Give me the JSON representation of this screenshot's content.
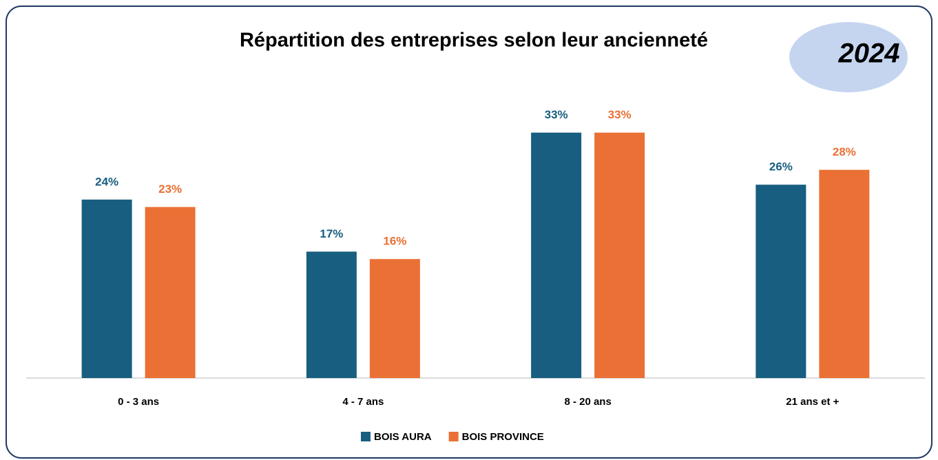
{
  "chart_data": {
    "type": "bar",
    "title": "Répartition des entreprises selon leur ancienneté",
    "annotation": "2024",
    "categories": [
      "0 - 3 ans",
      "4 - 7 ans",
      "8 - 20 ans",
      "21 ans et +"
    ],
    "series": [
      {
        "name": "BOIS AURA",
        "color": "#175e80",
        "values": [
          24,
          17,
          33,
          26
        ],
        "value_labels": [
          "24%",
          "17%",
          "33%",
          "26%"
        ]
      },
      {
        "name": "BOIS PROVINCE",
        "color": "#ea7035",
        "values": [
          23,
          16,
          33,
          28
        ],
        "value_labels": [
          "23%",
          "16%",
          "33%",
          "28%"
        ]
      }
    ],
    "ylim": [
      0,
      35
    ],
    "grid": false,
    "legend": "bottom"
  }
}
